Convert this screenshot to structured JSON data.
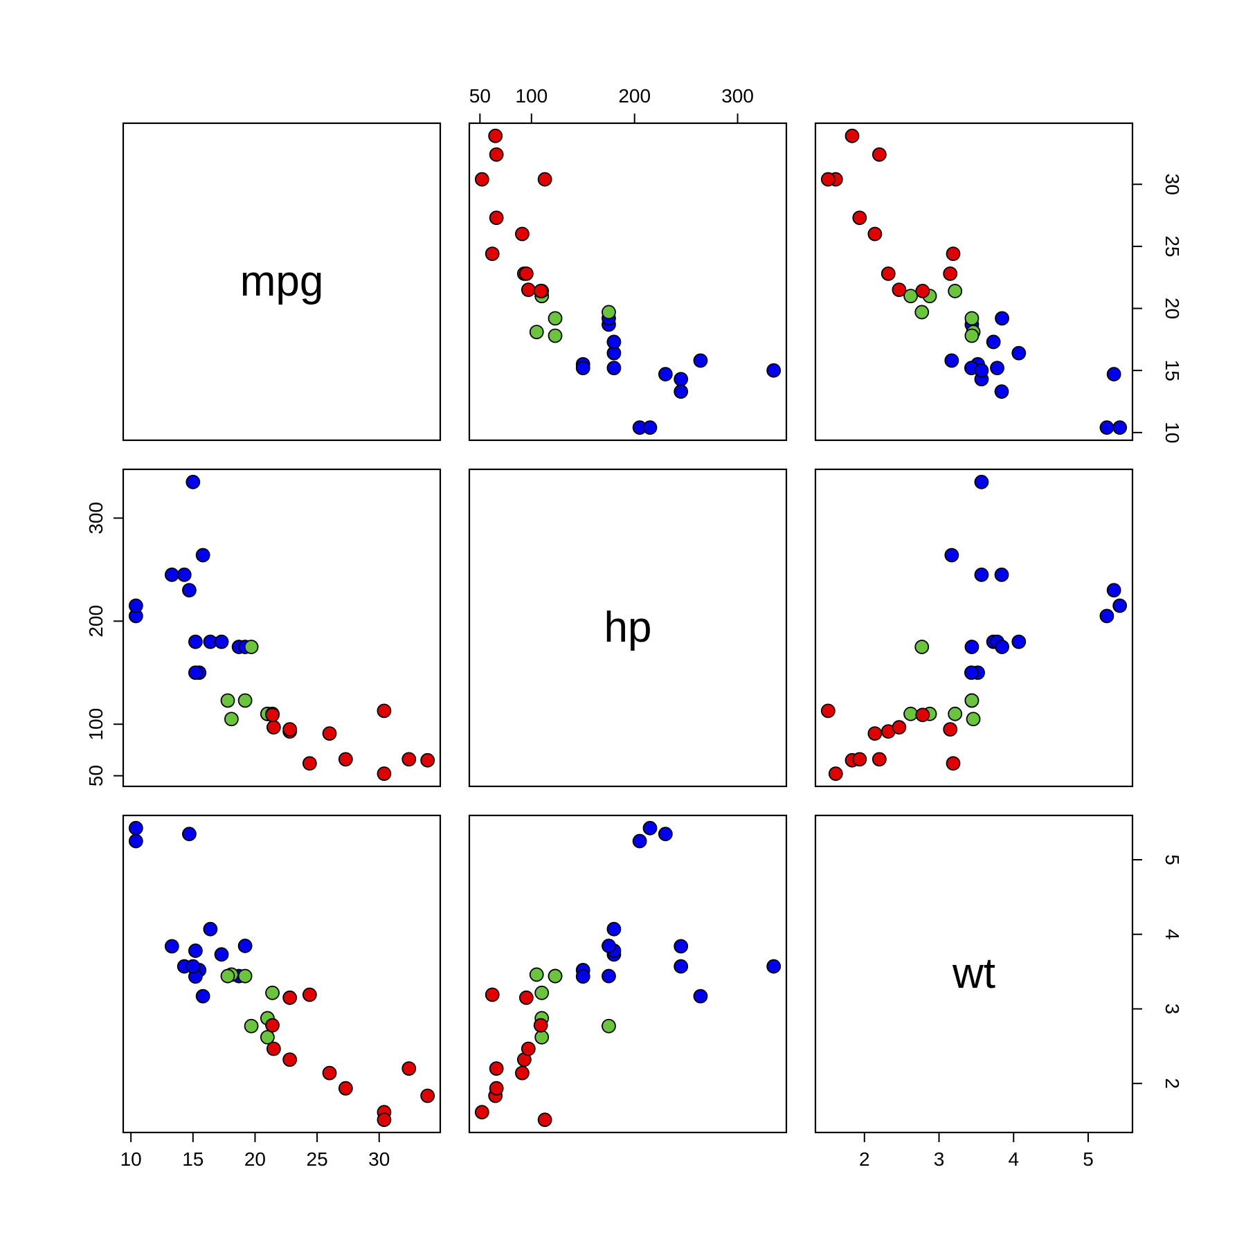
{
  "chart_data": {
    "type": "scatter",
    "title": "",
    "variables": [
      {
        "key": "mpg",
        "label": "mpg",
        "range": [
          10.4,
          33.9
        ],
        "ticks": [
          10,
          15,
          20,
          25,
          30
        ]
      },
      {
        "key": "hp",
        "label": "hp",
        "range": [
          52,
          335
        ],
        "ticks": [
          50,
          100,
          200,
          300
        ]
      },
      {
        "key": "wt",
        "label": "wt",
        "range": [
          1.513,
          5.424
        ],
        "ticks": [
          2,
          3,
          4,
          5
        ]
      }
    ],
    "grid": false,
    "legend": "none",
    "colors": {
      "4": "#e00000",
      "6": "#6ac53c",
      "8": "#0000f0"
    },
    "points": [
      {
        "mpg": 21.0,
        "hp": 110,
        "wt": 2.62,
        "cyl": 6
      },
      {
        "mpg": 21.0,
        "hp": 110,
        "wt": 2.875,
        "cyl": 6
      },
      {
        "mpg": 22.8,
        "hp": 93,
        "wt": 2.32,
        "cyl": 4
      },
      {
        "mpg": 21.4,
        "hp": 110,
        "wt": 3.215,
        "cyl": 6
      },
      {
        "mpg": 18.7,
        "hp": 175,
        "wt": 3.44,
        "cyl": 8
      },
      {
        "mpg": 18.1,
        "hp": 105,
        "wt": 3.46,
        "cyl": 6
      },
      {
        "mpg": 14.3,
        "hp": 245,
        "wt": 3.57,
        "cyl": 8
      },
      {
        "mpg": 24.4,
        "hp": 62,
        "wt": 3.19,
        "cyl": 4
      },
      {
        "mpg": 22.8,
        "hp": 95,
        "wt": 3.15,
        "cyl": 4
      },
      {
        "mpg": 19.2,
        "hp": 123,
        "wt": 3.44,
        "cyl": 6
      },
      {
        "mpg": 17.8,
        "hp": 123,
        "wt": 3.44,
        "cyl": 6
      },
      {
        "mpg": 16.4,
        "hp": 180,
        "wt": 4.07,
        "cyl": 8
      },
      {
        "mpg": 17.3,
        "hp": 180,
        "wt": 3.73,
        "cyl": 8
      },
      {
        "mpg": 15.2,
        "hp": 180,
        "wt": 3.78,
        "cyl": 8
      },
      {
        "mpg": 10.4,
        "hp": 205,
        "wt": 5.25,
        "cyl": 8
      },
      {
        "mpg": 10.4,
        "hp": 215,
        "wt": 5.424,
        "cyl": 8
      },
      {
        "mpg": 14.7,
        "hp": 230,
        "wt": 5.345,
        "cyl": 8
      },
      {
        "mpg": 32.4,
        "hp": 66,
        "wt": 2.2,
        "cyl": 4
      },
      {
        "mpg": 30.4,
        "hp": 52,
        "wt": 1.615,
        "cyl": 4
      },
      {
        "mpg": 33.9,
        "hp": 65,
        "wt": 1.835,
        "cyl": 4
      },
      {
        "mpg": 21.5,
        "hp": 97,
        "wt": 2.465,
        "cyl": 4
      },
      {
        "mpg": 15.5,
        "hp": 150,
        "wt": 3.52,
        "cyl": 8
      },
      {
        "mpg": 15.2,
        "hp": 150,
        "wt": 3.435,
        "cyl": 8
      },
      {
        "mpg": 13.3,
        "hp": 245,
        "wt": 3.84,
        "cyl": 8
      },
      {
        "mpg": 19.2,
        "hp": 175,
        "wt": 3.845,
        "cyl": 8
      },
      {
        "mpg": 27.3,
        "hp": 66,
        "wt": 1.935,
        "cyl": 4
      },
      {
        "mpg": 26.0,
        "hp": 91,
        "wt": 2.14,
        "cyl": 4
      },
      {
        "mpg": 30.4,
        "hp": 113,
        "wt": 1.513,
        "cyl": 4
      },
      {
        "mpg": 15.8,
        "hp": 264,
        "wt": 3.17,
        "cyl": 8
      },
      {
        "mpg": 19.7,
        "hp": 175,
        "wt": 2.77,
        "cyl": 6
      },
      {
        "mpg": 15.0,
        "hp": 335,
        "wt": 3.57,
        "cyl": 8
      },
      {
        "mpg": 21.4,
        "hp": 109,
        "wt": 2.78,
        "cyl": 4
      }
    ]
  }
}
